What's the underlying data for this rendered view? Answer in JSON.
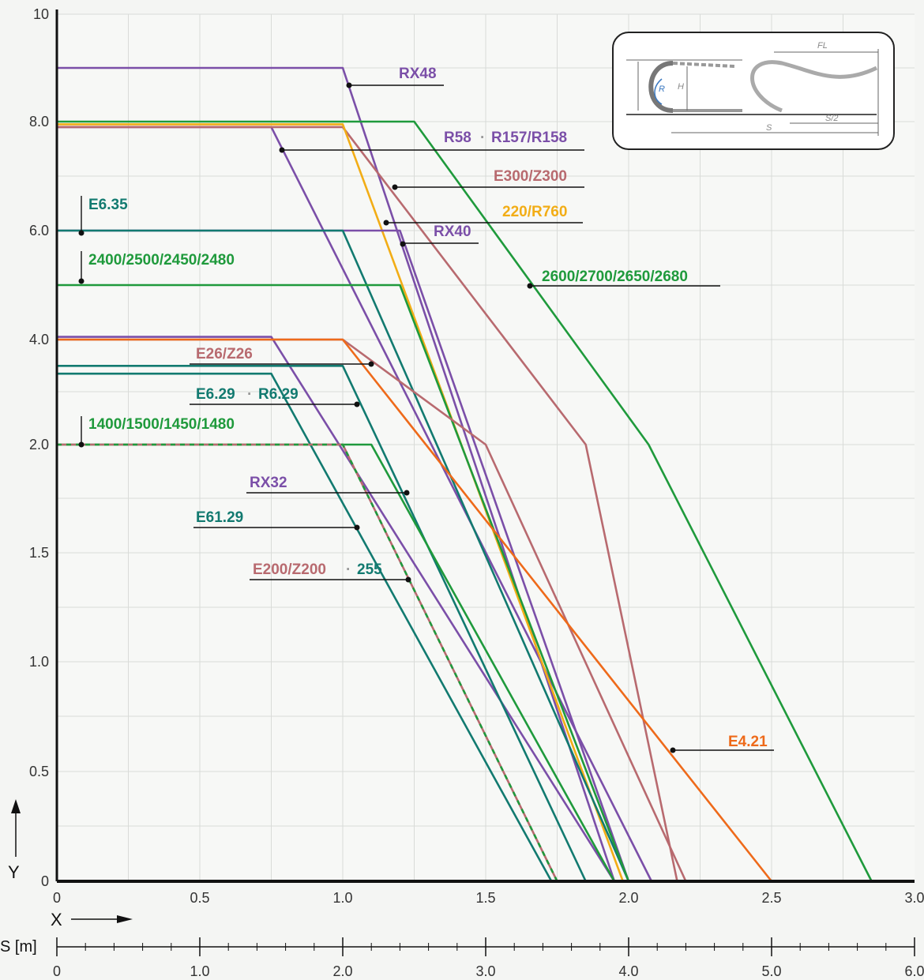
{
  "chart_data": {
    "type": "line",
    "title": "",
    "xlabel": "X",
    "ylabel": "Y",
    "x_ticks": [
      "0",
      "0.5",
      "1.0",
      "1.5",
      "2.0",
      "2.5",
      "3.0"
    ],
    "y_ticks": [
      "0",
      "0.5",
      "1.0",
      "1.5",
      "2.0",
      "4.0",
      "6.0",
      "8.0",
      "10"
    ],
    "s_axis": {
      "label": "S [m]",
      "ticks": [
        "0",
        "1.0",
        "2.0",
        "3.0",
        "4.0",
        "5.0",
        "6.0"
      ]
    },
    "colors": {
      "purple": "#7b4fa8",
      "green": "#1f9a3c",
      "teal": "#127a70",
      "orange": "#ee6a1a",
      "yellow": "#f2ad16",
      "rose": "#b86a6f"
    },
    "series": [
      {
        "name": "RX48",
        "color": "purple",
        "points": [
          [
            0,
            9
          ],
          [
            1.0,
            9
          ],
          [
            1.95,
            0
          ]
        ]
      },
      {
        "name": "R58 · R157/R158",
        "color": "purple",
        "points": [
          [
            0,
            7.9
          ],
          [
            0.75,
            7.9
          ],
          [
            2.08,
            0
          ]
        ]
      },
      {
        "name": "2600/2700/2650/2680",
        "color": "green",
        "points": [
          [
            0,
            8
          ],
          [
            1.25,
            8
          ],
          [
            2.07,
            2.0
          ],
          [
            2.85,
            0
          ]
        ]
      },
      {
        "name": "E300/Z300",
        "color": "rose",
        "points": [
          [
            0,
            7.9
          ],
          [
            1.0,
            7.9
          ],
          [
            1.85,
            2.0
          ],
          [
            2.17,
            0
          ]
        ]
      },
      {
        "name": "220/R760",
        "color": "yellow",
        "points": [
          [
            0,
            7.95
          ],
          [
            1.0,
            7.95
          ],
          [
            1.98,
            0
          ]
        ]
      },
      {
        "name": "RX40",
        "color": "purple",
        "points": [
          [
            0,
            6.0
          ],
          [
            1.2,
            6.0
          ],
          [
            2.0,
            0
          ]
        ]
      },
      {
        "name": "E6.35",
        "color": "teal",
        "points": [
          [
            0,
            6.0
          ],
          [
            1.0,
            6.0
          ],
          [
            2.0,
            0
          ]
        ]
      },
      {
        "name": "2400/2500/2450/2480",
        "color": "green",
        "points": [
          [
            0,
            5.0
          ],
          [
            1.2,
            5.0
          ],
          [
            2.0,
            0
          ]
        ]
      },
      {
        "name": "RX32",
        "color": "purple",
        "points": [
          [
            0,
            4.05
          ],
          [
            0.75,
            4.05
          ],
          [
            1.95,
            0
          ]
        ]
      },
      {
        "name": "E26/Z26",
        "color": "rose",
        "points": [
          [
            0,
            4.0
          ],
          [
            1.0,
            4.0
          ],
          [
            1.5,
            2.0
          ],
          [
            2.2,
            0
          ]
        ]
      },
      {
        "name": "E4.21",
        "color": "orange",
        "points": [
          [
            0,
            4.0
          ],
          [
            1.0,
            4.0
          ],
          [
            2.5,
            0
          ]
        ]
      },
      {
        "name": "E6.29 · R6.29",
        "color": "teal",
        "points": [
          [
            0,
            3.5
          ],
          [
            1.0,
            3.5
          ],
          [
            1.85,
            0
          ]
        ]
      },
      {
        "name": "E61.29",
        "color": "teal",
        "points": [
          [
            0,
            3.35
          ],
          [
            0.75,
            3.35
          ],
          [
            1.73,
            0
          ]
        ]
      },
      {
        "name": "1400/1500/1450/1480",
        "color": "green",
        "points": [
          [
            0,
            2.0
          ],
          [
            1.1,
            2.0
          ],
          [
            1.95,
            0
          ]
        ]
      },
      {
        "name": "E200/Z200 · 255",
        "color": "rose",
        "points": [
          [
            0,
            2.0
          ],
          [
            1.0,
            2.0
          ],
          [
            1.75,
            0
          ]
        ]
      }
    ],
    "labels": [
      {
        "text": "RX48",
        "color": "purple"
      },
      {
        "text": "R58",
        "color": "purple"
      },
      {
        "text": "R157/R158",
        "color": "purple"
      },
      {
        "text": "E300/Z300",
        "color": "rose"
      },
      {
        "text": "220/R760",
        "color": "yellow"
      },
      {
        "text": "RX40",
        "color": "purple"
      },
      {
        "text": "2600/2700/2650/2680",
        "color": "green"
      },
      {
        "text": "E6.35",
        "color": "teal"
      },
      {
        "text": "2400/2500/2450/2480",
        "color": "green"
      },
      {
        "text": "E26/Z26",
        "color": "rose"
      },
      {
        "text": "E6.29",
        "color": "teal"
      },
      {
        "text": "R6.29",
        "color": "teal"
      },
      {
        "text": "1400/1500/1450/1480",
        "color": "green"
      },
      {
        "text": "RX32",
        "color": "purple"
      },
      {
        "text": "E61.29",
        "color": "teal"
      },
      {
        "text": "E200/Z200",
        "color": "rose"
      },
      {
        "text": "255",
        "color": "teal"
      },
      {
        "text": "E4.21",
        "color": "orange"
      }
    ],
    "inset": {
      "labels": [
        "FL",
        "H",
        "R",
        "S",
        "S/2"
      ]
    }
  }
}
